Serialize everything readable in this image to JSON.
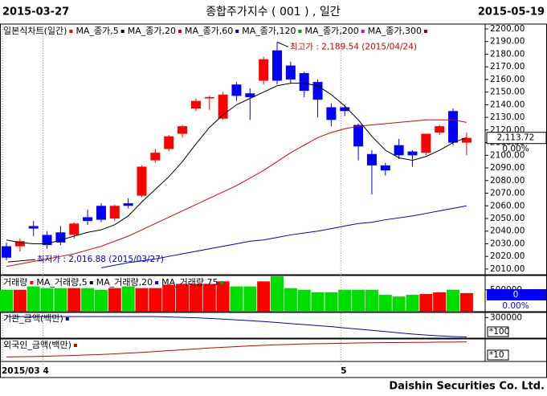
{
  "header": {
    "start": "2015-03-27",
    "title": "종합주가지수 ( 001 ) , 일간",
    "end": "2015-05-19"
  },
  "footer": "Daishin Securities Co. Ltd.",
  "chart_data": [
    {
      "type": "candlestick",
      "name": "일본식차트(일간)",
      "up_color": "#ff0000",
      "down_color": "#0000ff",
      "categories": [
        "2015/03",
        null,
        null,
        "4",
        null,
        null,
        null,
        null,
        null,
        null,
        null,
        null,
        null,
        null,
        null,
        null,
        null,
        null,
        null,
        null,
        null,
        null,
        null,
        null,
        null,
        "5",
        null,
        null,
        null,
        null,
        null,
        null,
        null,
        null,
        null
      ],
      "open": [
        2028,
        2028,
        2044,
        2037,
        2039,
        2037,
        2051,
        2060,
        2050,
        2062,
        2068,
        2096,
        2105,
        2117,
        2137,
        2145,
        2129,
        2156,
        2149,
        2159,
        2183,
        2171,
        2165,
        2158,
        2138,
        2138,
        2124,
        2101,
        2092,
        2108,
        2103,
        2102,
        2118,
        2135,
        2110
      ],
      "high": [
        2031,
        2034,
        2048,
        2040,
        2044,
        2047,
        2057,
        2062,
        2061,
        2066,
        2092,
        2105,
        2116,
        2124,
        2145,
        2147,
        2150,
        2158,
        2153,
        2178,
        2189.54,
        2174,
        2166,
        2160,
        2141,
        2140,
        2125,
        2104,
        2094,
        2113,
        2104,
        2117,
        2124,
        2137,
        2118
      ],
      "low": [
        2016.88,
        2024,
        2036,
        2026,
        2029,
        2034,
        2045,
        2047,
        2048,
        2058,
        2067,
        2094,
        2103,
        2114,
        2135,
        2136,
        2128,
        2143,
        2128,
        2156,
        2156,
        2157,
        2146,
        2130,
        2123,
        2131,
        2096,
        2069,
        2084,
        2097,
        2091,
        2100,
        2116,
        2108,
        2100
      ],
      "close": [
        2019,
        2032,
        2042,
        2029,
        2031,
        2046,
        2048,
        2049,
        2060,
        2060,
        2091,
        2102,
        2115,
        2123,
        2143,
        2146,
        2148,
        2147,
        2146,
        2176,
        2159,
        2160,
        2151,
        2144,
        2128,
        2135,
        2107,
        2092,
        2088,
        2100,
        2100,
        2117,
        2123,
        2110,
        2113.72
      ],
      "series": [
        {
          "name": "MA_종가,5",
          "color": "#000000",
          "values": [
            2033,
            2031,
            2030,
            2030,
            2033,
            2036,
            2039,
            2041,
            2045,
            2052,
            2063,
            2073,
            2083,
            2095,
            2109,
            2122,
            2132,
            2140,
            2145,
            2150,
            2155,
            2157,
            2157,
            2155,
            2148,
            2139,
            2128,
            2115,
            2104,
            2098,
            2096,
            2099,
            2104,
            2110,
            2114
          ]
        },
        {
          "name": "MA_종가,20",
          "color": "#e00000",
          "values": [
            2012,
            2014,
            2016,
            2018,
            2020,
            2022,
            2025,
            2028,
            2032,
            2036,
            2041,
            2046,
            2051,
            2056,
            2061,
            2066,
            2071,
            2076,
            2082,
            2088,
            2095,
            2102,
            2108,
            2114,
            2118,
            2121,
            2123,
            2124,
            2125,
            2126,
            2127,
            2128,
            2128,
            2128,
            2126
          ]
        },
        {
          "name": "MA_종가,60",
          "color": "#0000c0",
          "values": [
            null,
            null,
            null,
            null,
            null,
            null,
            null,
            2011,
            2013,
            2015,
            2016.5,
            2018,
            2020,
            2022,
            2024,
            2026,
            2028,
            2030,
            2032,
            2033,
            2035,
            2037,
            2038.5,
            2040,
            2042,
            2044,
            2046,
            2047,
            2049,
            2050.5,
            2052,
            2054,
            2056,
            2058,
            2060
          ]
        }
      ],
      "indicators": [
        {
          "name": "MA_종가,120",
          "color": "#00a000"
        },
        {
          "name": "MA_종가,200",
          "color": "#e000e0"
        },
        {
          "name": "MA_종가,300",
          "color": "#a00000"
        }
      ],
      "annotations": {
        "high": "최고가 : 2,189.54 (2015/04/24)",
        "low": "최저가 : 2,016.88 (2015/03/27)"
      },
      "last_label": "2,113.72",
      "change_label": "0.00%",
      "ylim": [
        2005.5,
        2203.8
      ],
      "yticks": [
        {
          "value": 2010,
          "label": "2010.00"
        },
        {
          "value": 2020,
          "label": "2020.00"
        },
        {
          "value": 2030,
          "label": "2030.00"
        },
        {
          "value": 2040,
          "label": "2040.00"
        },
        {
          "value": 2050,
          "label": "2050.00"
        },
        {
          "value": 2060,
          "label": "2060.00"
        },
        {
          "value": 2070,
          "label": "2070.00"
        },
        {
          "value": 2080,
          "label": "2080.00"
        },
        {
          "value": 2090,
          "label": "2090.00"
        },
        {
          "value": 2100,
          "label": "2100.00"
        },
        {
          "value": 2110,
          "label": "2110.00"
        },
        {
          "value": 2120,
          "label": "2120.00"
        },
        {
          "value": 2130,
          "label": "2130.00"
        },
        {
          "value": 2140,
          "label": "2140.00"
        },
        {
          "value": 2150,
          "label": "2150.00"
        },
        {
          "value": 2160,
          "label": "2160.00"
        },
        {
          "value": 2170,
          "label": "2170.00"
        },
        {
          "value": 2180,
          "label": "2180.00"
        },
        {
          "value": 2190,
          "label": "2190.00"
        },
        {
          "value": 2200,
          "label": "2200.00"
        }
      ]
    },
    {
      "type": "bar",
      "name": "거래량",
      "color": "#ff0000",
      "down_color": "#00dd00",
      "values": [
        502000,
        502000,
        579000,
        540000,
        540000,
        540000,
        540000,
        502000,
        540000,
        579000,
        540000,
        540000,
        618000,
        637000,
        637000,
        637000,
        695000,
        579000,
        579000,
        695000,
        811000,
        540000,
        502000,
        444000,
        444000,
        502000,
        502000,
        502000,
        386000,
        347000,
        386000,
        405000,
        444000,
        502000,
        425000
      ],
      "indicators": [
        {
          "name": "MA_거래량,5",
          "color": "#000000"
        },
        {
          "name": "MA_거래량,20",
          "color": "#0000ff"
        },
        {
          "name": "MA_거래량,75",
          "color": "#00b000"
        }
      ],
      "last_label": "0",
      "change_label": "0.00%",
      "ylim": [
        0,
        830000
      ],
      "yticks": [
        500000
      ]
    },
    {
      "type": "line",
      "name": "기관_금액(백만)",
      "color": "#0000c0",
      "values": [
        310000,
        310000,
        310000,
        310000,
        310000,
        310000,
        310000,
        310000,
        310000,
        310000,
        310000,
        310000,
        306000,
        302000,
        298000,
        292000,
        286000,
        278000,
        270000,
        262000,
        252000,
        242000,
        232000,
        222000,
        212000,
        200000,
        188000,
        176000,
        164000,
        152000,
        140000,
        130000,
        122000,
        116000,
        112000
      ],
      "unit": "*100",
      "ylim": [
        100000,
        350000
      ],
      "yticks": [
        300000
      ]
    },
    {
      "type": "line",
      "name": "외국인_금액(백만)",
      "color": "#d00000",
      "values": [
        20,
        21,
        22,
        23,
        25,
        27,
        29,
        31,
        34,
        37,
        40,
        44,
        48,
        52,
        56,
        60,
        63,
        66,
        69,
        72,
        74,
        76,
        78,
        79,
        80,
        81,
        82,
        83,
        84,
        84,
        85,
        85,
        86,
        86,
        87
      ],
      "unit": "*10",
      "ylim": [
        0,
        100
      ],
      "yticks": []
    }
  ]
}
